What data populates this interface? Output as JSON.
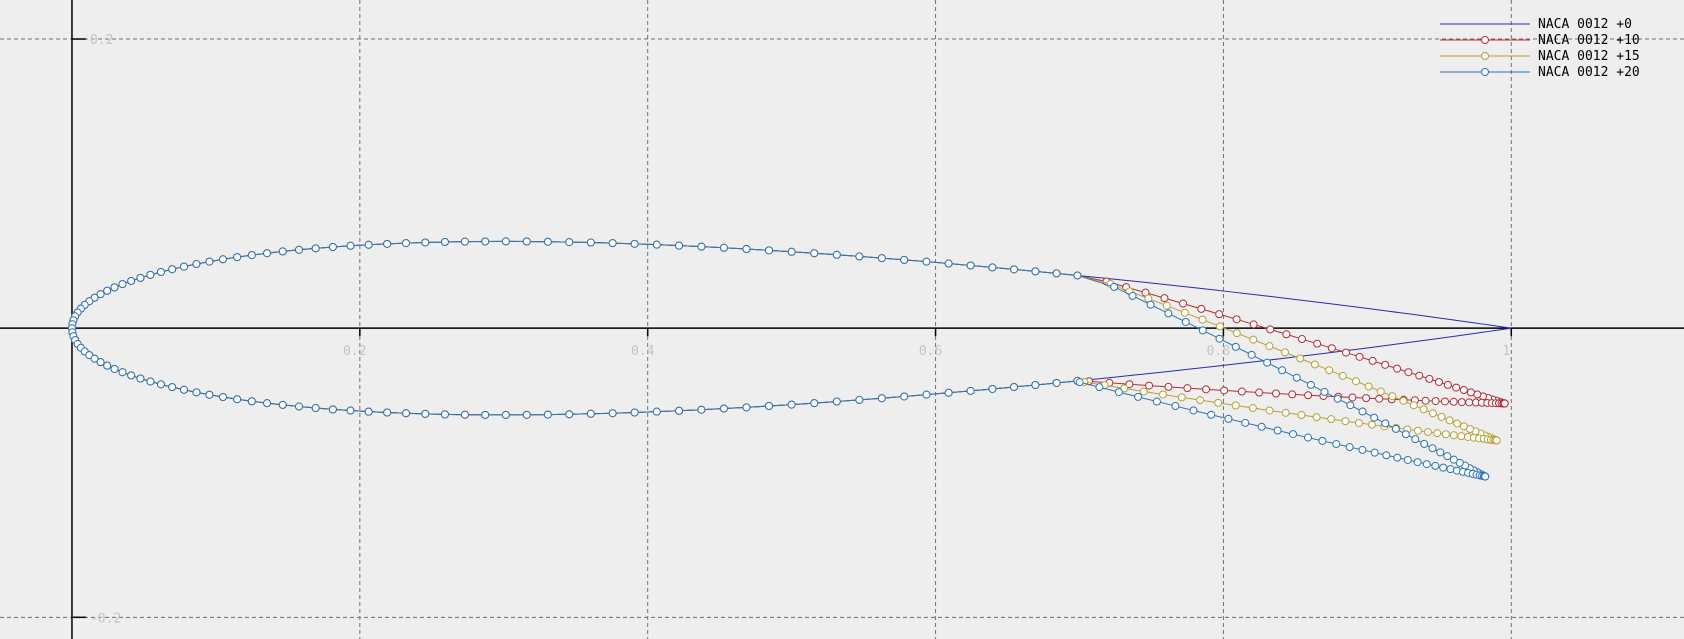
{
  "chart_data": {
    "type": "line",
    "title": "",
    "xlabel": "",
    "ylabel": "",
    "xlim": [
      -0.05,
      1.12
    ],
    "ylim": [
      -0.215,
      0.227
    ],
    "x_gridlines": [
      0.2,
      0.4,
      0.6,
      0.8,
      1.0
    ],
    "y_gridlines": [
      0.2,
      -0.2
    ],
    "x_tick_labels": [
      {
        "value": 0.2,
        "label": "0.2"
      },
      {
        "value": 0.4,
        "label": "0.4"
      },
      {
        "value": 0.6,
        "label": "0.6"
      },
      {
        "value": 0.8,
        "label": "0.8"
      },
      {
        "value": 1.0,
        "label": "1"
      }
    ],
    "y_tick_labels": [
      {
        "value": 0.2,
        "label": "0.2"
      },
      {
        "value": -0.2,
        "label": "-0.2"
      }
    ],
    "grid": true,
    "legend_position": "top-right",
    "airfoil": {
      "thickness": 0.12,
      "points_per_surface": 100,
      "flap_hinge_x": 0.7
    },
    "series": [
      {
        "name": "NACA 0012 +0",
        "flap_deg": 0,
        "color": "#2a2aa6",
        "markers": false
      },
      {
        "name": "NACA 0012 +10",
        "flap_deg": 10,
        "color": "#b42d34",
        "markers": true
      },
      {
        "name": "NACA 0012 +15",
        "flap_deg": 15,
        "color": "#b6a03b",
        "markers": true
      },
      {
        "name": "NACA 0012 +20",
        "flap_deg": 20,
        "color": "#2f73b5",
        "markers": true
      }
    ]
  }
}
